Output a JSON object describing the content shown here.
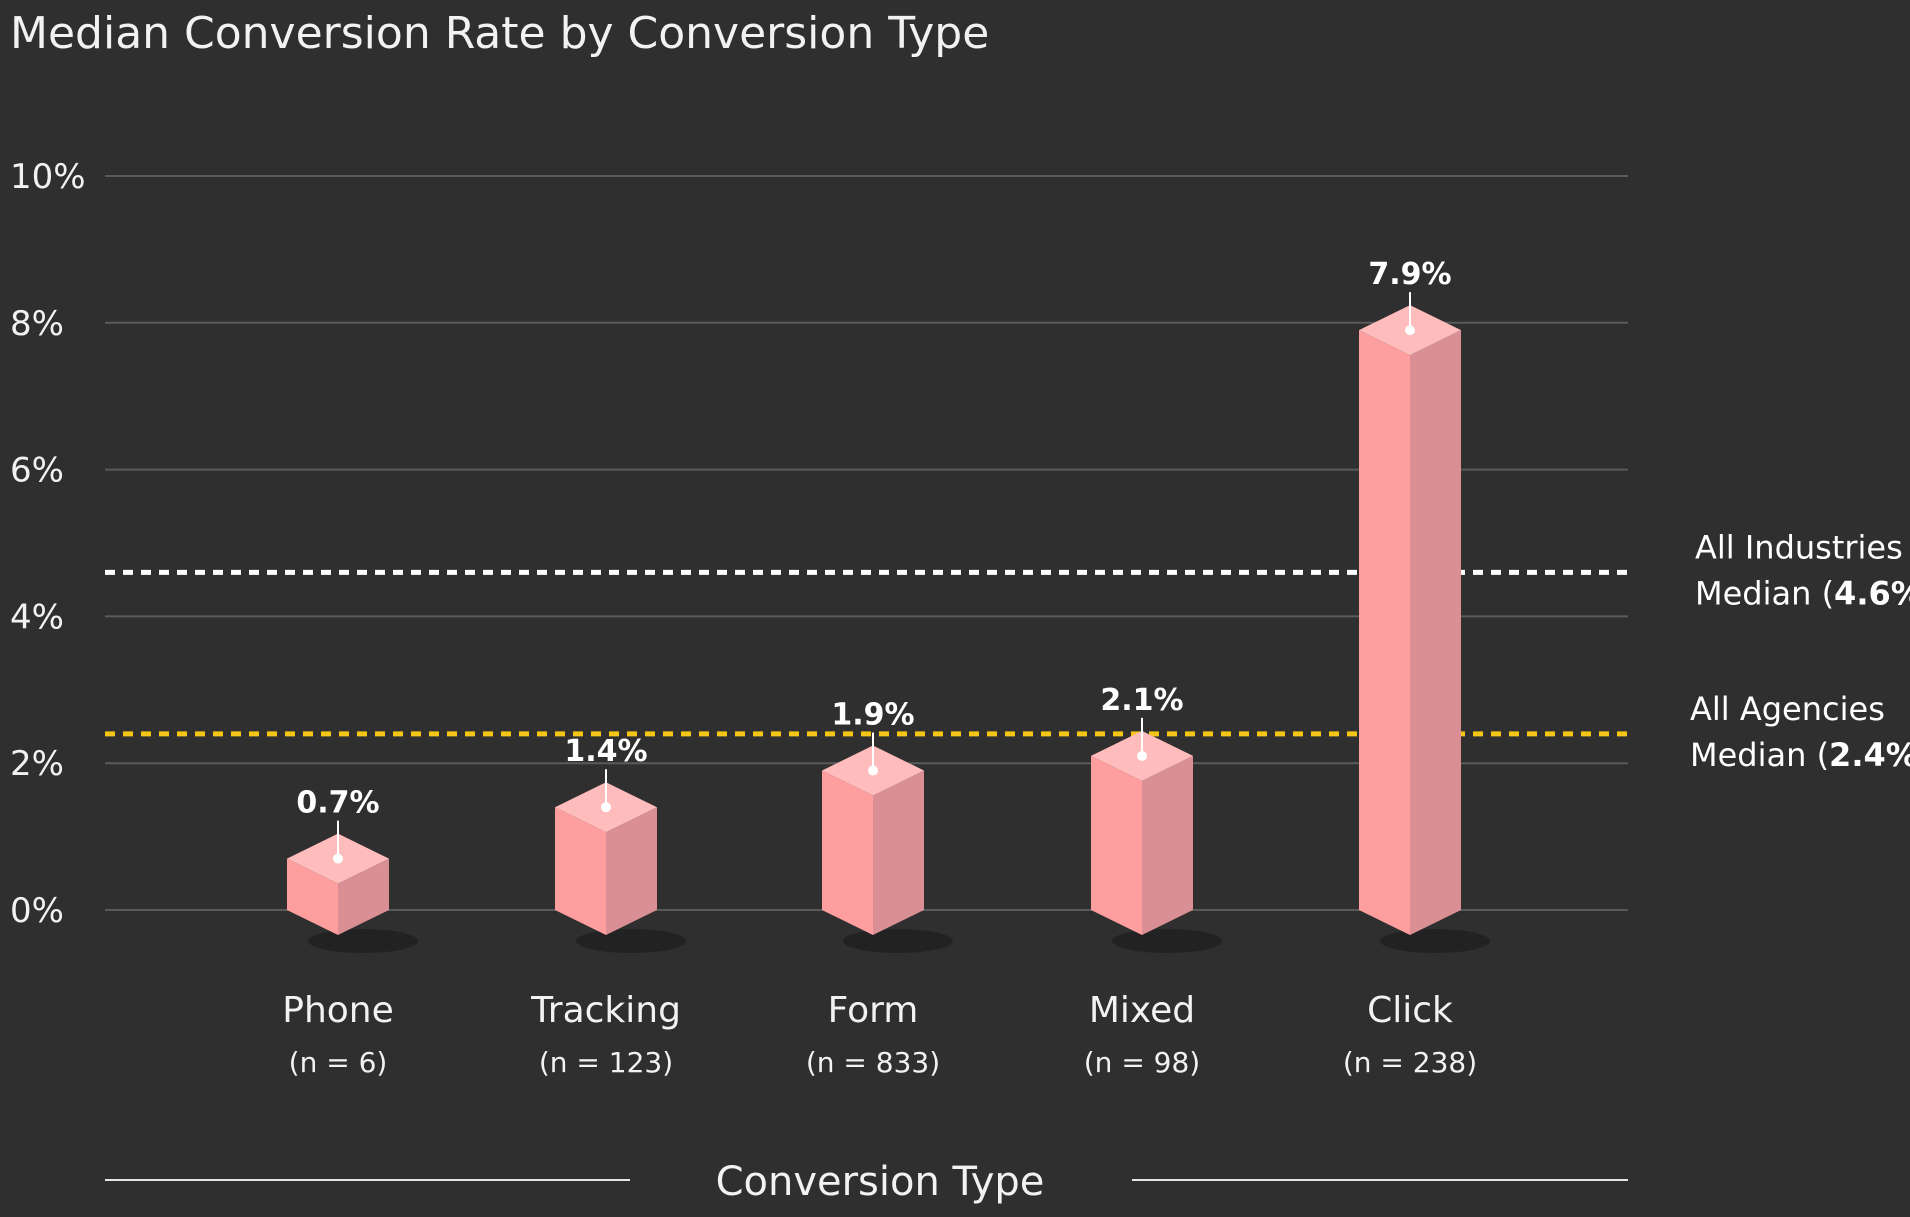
{
  "chart_data": {
    "type": "bar",
    "title": "Median Conversion Rate by Conversion Type",
    "xlabel": "Conversion Type",
    "ylabel": "",
    "ylim": [
      0,
      10
    ],
    "yticks": [
      "0%",
      "2%",
      "4%",
      "6%",
      "8%",
      "10%"
    ],
    "categories": [
      "Phone",
      "Tracking",
      "Form",
      "Mixed",
      "Click"
    ],
    "sample_sizes": [
      "(n = 6)",
      "(n = 123)",
      "(n = 833)",
      "(n = 98)",
      "(n = 238)"
    ],
    "values": [
      0.7,
      1.4,
      1.9,
      2.1,
      7.9
    ],
    "value_labels": [
      "0.7%",
      "1.4%",
      "1.9%",
      "2.1%",
      "7.9%"
    ],
    "bar_color": "#ff9e9e",
    "grid": true,
    "reference_lines": [
      {
        "line1": "All Industries",
        "line2_prefix": "Median (",
        "bold_value": "4.6%",
        "line2_suffix": ")",
        "value": 4.6,
        "color": "#ffffff"
      },
      {
        "line1": "All Agencies",
        "line2_prefix": "Median (",
        "bold_value": "2.4%",
        "line2_suffix": ")",
        "value": 2.4,
        "color": "#f5c518"
      }
    ]
  }
}
